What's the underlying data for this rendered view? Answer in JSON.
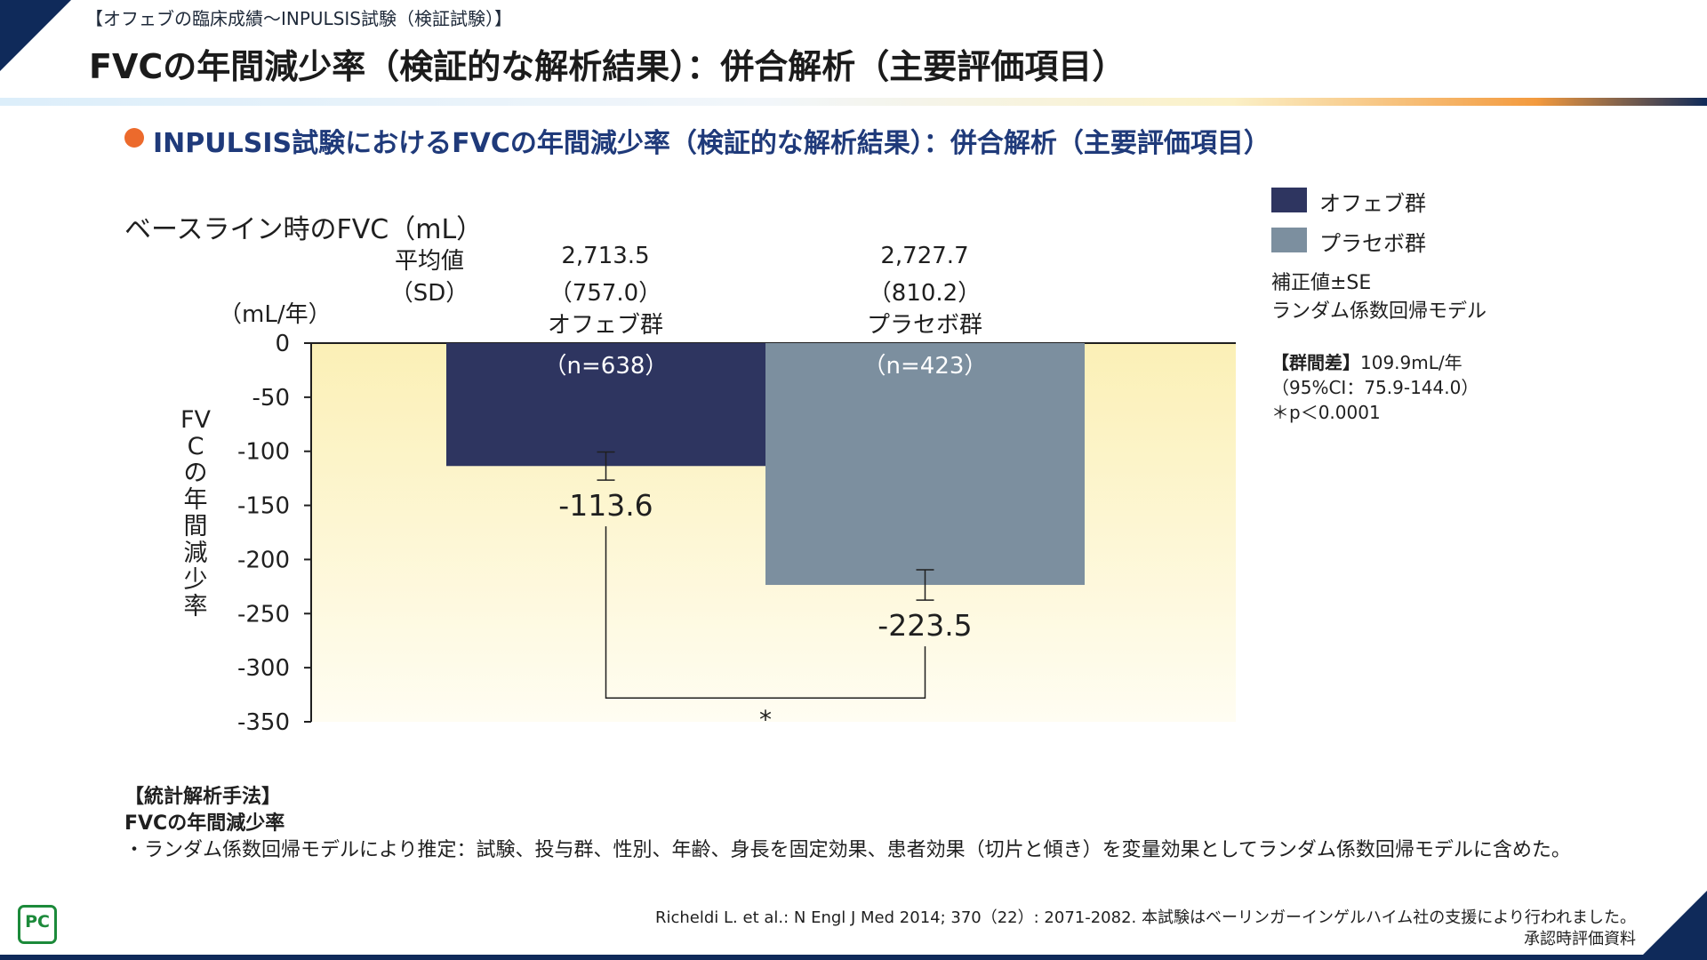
{
  "header": {
    "category": "【オフェブの臨床成績〜INPULSIS試験（検証試験）】",
    "title": "FVCの年間減少率（検証的な解析結果）：併合解析（主要評価項目）"
  },
  "section": {
    "title": "INPULSIS試験におけるFVCの年間減少率（検証的な解析結果）：併合解析（主要評価項目）"
  },
  "baseline": {
    "label": "ベースライン時のFVC（mL）",
    "mean_label": "平均値",
    "sd_label": "（SD）",
    "groups": [
      {
        "mean": "2,713.5",
        "sd": "（757.0）",
        "name": "オフェブ群"
      },
      {
        "mean": "2,727.7",
        "sd": "（810.2）",
        "name": "プラセボ群"
      }
    ]
  },
  "chart_data": {
    "type": "bar",
    "ylabel": "FVCの年間減少率",
    "yunit": "（mL/年）",
    "ylim": [
      -350,
      0
    ],
    "yticks": [
      0,
      -50,
      -100,
      -150,
      -200,
      -250,
      -300,
      -350
    ],
    "categories": [
      "オフェブ群",
      "プラセボ群"
    ],
    "series": [
      {
        "name": "オフェブ群",
        "value": -113.6,
        "value_label": "-113.6",
        "se": 13,
        "n_label": "（n=638）",
        "color": "#2e3560"
      },
      {
        "name": "プラセボ群",
        "value": -223.5,
        "value_label": "-223.5",
        "se": 14,
        "n_label": "（n=423）",
        "color": "#7c8f9f"
      }
    ],
    "significance": "*"
  },
  "legend": {
    "items": [
      {
        "label": "オフェブ群",
        "color": "#2e3560"
      },
      {
        "label": "プラセボ群",
        "color": "#7c8f9f"
      }
    ],
    "note1": "補正値±SE",
    "note2": "ランダム係数回帰モデル",
    "diff_label": "【群間差】",
    "diff_value": "109.9mL/年",
    "ci": "（95%CI：75.9-144.0）",
    "p": "＊p＜0.0001"
  },
  "method": {
    "heading": "【統計解析手法】",
    "subheading": "FVCの年間減少率",
    "text": "・ランダム係数回帰モデルにより推定：試験、投与群、性別、年齢、身長を固定効果、患者効果（切片と傾き）を変量効果としてランダム係数回帰モデルに含めた。"
  },
  "footer": {
    "citation": "Richeldi L. et al.: N Engl J Med 2014; 370（22）: 2071-2082. 本試験はベーリンガーインゲルハイム社の支援により行われました。",
    "approval": "承認時評価資料",
    "logo": "PC"
  }
}
